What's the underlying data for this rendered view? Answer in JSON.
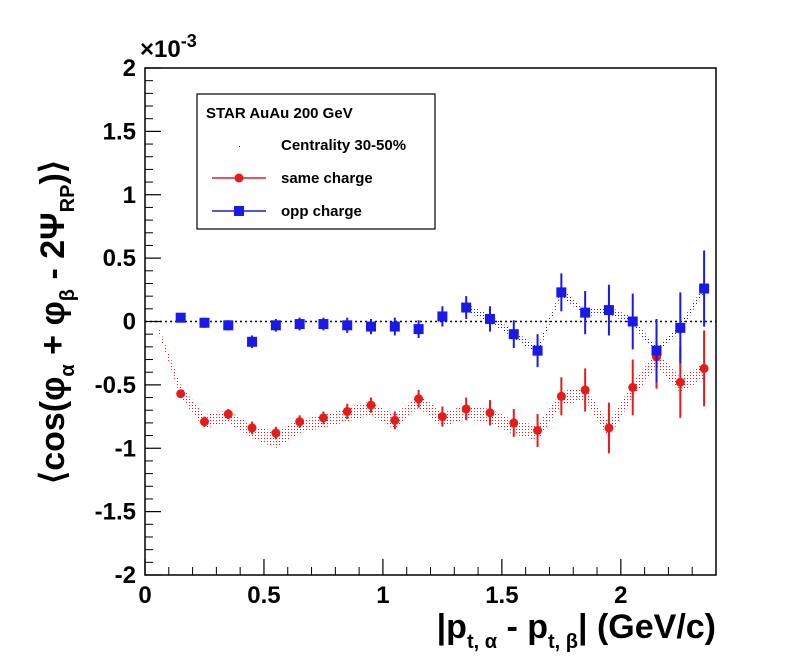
{
  "chart_data": {
    "type": "scatter",
    "xlabel": "|p_t,α - p_t,β|  (GeV/c)",
    "ylabel": "⟨cos(φα + φβ - 2ΨRP)⟩",
    "xlim": [
      0,
      2.4
    ],
    "ylim": [
      -2,
      2
    ],
    "exponent_label": "×10-3",
    "x_ticks": [
      "0",
      "0.5",
      "1",
      "1.5",
      "2"
    ],
    "y_ticks": [
      "2",
      "1.5",
      "1",
      "0.5",
      "0",
      "-0.5",
      "-1",
      "-1.5",
      "-2"
    ],
    "grid": false,
    "legend": {
      "position": "top-left",
      "title": "STAR  AuAu 200 GeV",
      "entries": [
        "Centrality 30-50%",
        "same charge",
        "opp charge"
      ]
    },
    "series": [
      {
        "name": "same charge",
        "color": "#e81a1a",
        "marker": "circle",
        "x": [
          0.15,
          0.25,
          0.35,
          0.45,
          0.55,
          0.65,
          0.75,
          0.85,
          0.95,
          1.05,
          1.15,
          1.25,
          1.35,
          1.45,
          1.55,
          1.65,
          1.75,
          1.85,
          1.95,
          2.05,
          2.15,
          2.25,
          2.35
        ],
        "y": [
          -0.57,
          -0.79,
          -0.73,
          -0.84,
          -0.88,
          -0.79,
          -0.76,
          -0.71,
          -0.66,
          -0.78,
          -0.61,
          -0.75,
          -0.69,
          -0.72,
          -0.8,
          -0.86,
          -0.59,
          -0.54,
          -0.84,
          -0.52,
          -0.28,
          -0.48,
          -0.37
        ],
        "err": [
          0.03,
          0.04,
          0.04,
          0.05,
          0.05,
          0.05,
          0.05,
          0.06,
          0.06,
          0.07,
          0.07,
          0.08,
          0.09,
          0.1,
          0.11,
          0.13,
          0.15,
          0.17,
          0.2,
          0.22,
          0.25,
          0.28,
          0.3
        ],
        "sys_band": [
          {
            "x": 0.05,
            "lo": -0.05,
            "hi": 0.0
          },
          {
            "x": 0.15,
            "lo": -0.6,
            "hi": -0.5
          },
          {
            "x": 0.25,
            "lo": -0.84,
            "hi": -0.74
          },
          {
            "x": 0.35,
            "lo": -0.8,
            "hi": -0.7
          },
          {
            "x": 0.45,
            "lo": -0.92,
            "hi": -0.82
          },
          {
            "x": 0.55,
            "lo": -1.0,
            "hi": -0.87
          },
          {
            "x": 0.65,
            "lo": -0.88,
            "hi": -0.77
          },
          {
            "x": 0.75,
            "lo": -0.84,
            "hi": -0.74
          },
          {
            "x": 0.85,
            "lo": -0.79,
            "hi": -0.68
          },
          {
            "x": 0.95,
            "lo": -0.74,
            "hi": -0.63
          },
          {
            "x": 1.05,
            "lo": -0.85,
            "hi": -0.74
          },
          {
            "x": 1.15,
            "lo": -0.68,
            "hi": -0.57
          },
          {
            "x": 1.25,
            "lo": -0.83,
            "hi": -0.72
          },
          {
            "x": 1.35,
            "lo": -0.77,
            "hi": -0.66
          },
          {
            "x": 1.45,
            "lo": -0.8,
            "hi": -0.69
          },
          {
            "x": 1.55,
            "lo": -0.89,
            "hi": -0.78
          },
          {
            "x": 1.65,
            "lo": -0.94,
            "hi": -0.82
          },
          {
            "x": 1.75,
            "lo": -0.66,
            "hi": -0.55
          },
          {
            "x": 1.85,
            "lo": -0.62,
            "hi": -0.52
          },
          {
            "x": 1.95,
            "lo": -0.92,
            "hi": -0.8
          },
          {
            "x": 2.05,
            "lo": -0.6,
            "hi": -0.48
          },
          {
            "x": 2.15,
            "lo": -0.36,
            "hi": -0.24
          },
          {
            "x": 2.25,
            "lo": -0.56,
            "hi": -0.44
          },
          {
            "x": 2.35,
            "lo": -0.45,
            "hi": -0.33
          }
        ]
      },
      {
        "name": "opp charge",
        "color": "#1a1ae8",
        "marker": "square",
        "x": [
          0.15,
          0.25,
          0.35,
          0.45,
          0.55,
          0.65,
          0.75,
          0.85,
          0.95,
          1.05,
          1.15,
          1.25,
          1.35,
          1.45,
          1.55,
          1.65,
          1.75,
          1.85,
          1.95,
          2.05,
          2.15,
          2.25,
          2.35
        ],
        "y": [
          0.03,
          -0.01,
          -0.03,
          -0.16,
          -0.03,
          -0.02,
          -0.02,
          -0.03,
          -0.04,
          -0.04,
          -0.06,
          0.04,
          0.11,
          0.02,
          -0.1,
          -0.23,
          0.23,
          0.07,
          0.09,
          0.0,
          -0.23,
          -0.05,
          0.26
        ],
        "err": [
          0.03,
          0.04,
          0.04,
          0.05,
          0.05,
          0.05,
          0.05,
          0.06,
          0.06,
          0.07,
          0.07,
          0.08,
          0.09,
          0.1,
          0.11,
          0.13,
          0.15,
          0.17,
          0.2,
          0.22,
          0.25,
          0.28,
          0.3
        ],
        "sys_band": [
          {
            "x": 1.35,
            "lo": 0.08,
            "hi": 0.14
          },
          {
            "x": 1.45,
            "lo": -0.01,
            "hi": 0.05
          },
          {
            "x": 1.55,
            "lo": -0.13,
            "hi": -0.07
          },
          {
            "x": 1.65,
            "lo": -0.26,
            "hi": -0.2
          },
          {
            "x": 1.75,
            "lo": 0.2,
            "hi": 0.26
          },
          {
            "x": 1.85,
            "lo": 0.04,
            "hi": 0.1
          },
          {
            "x": 1.95,
            "lo": 0.06,
            "hi": 0.12
          },
          {
            "x": 2.05,
            "lo": -0.03,
            "hi": 0.03
          },
          {
            "x": 2.15,
            "lo": -0.26,
            "hi": -0.2
          },
          {
            "x": 2.25,
            "lo": -0.08,
            "hi": -0.02
          },
          {
            "x": 2.35,
            "lo": 0.23,
            "hi": 0.29
          }
        ]
      }
    ]
  }
}
